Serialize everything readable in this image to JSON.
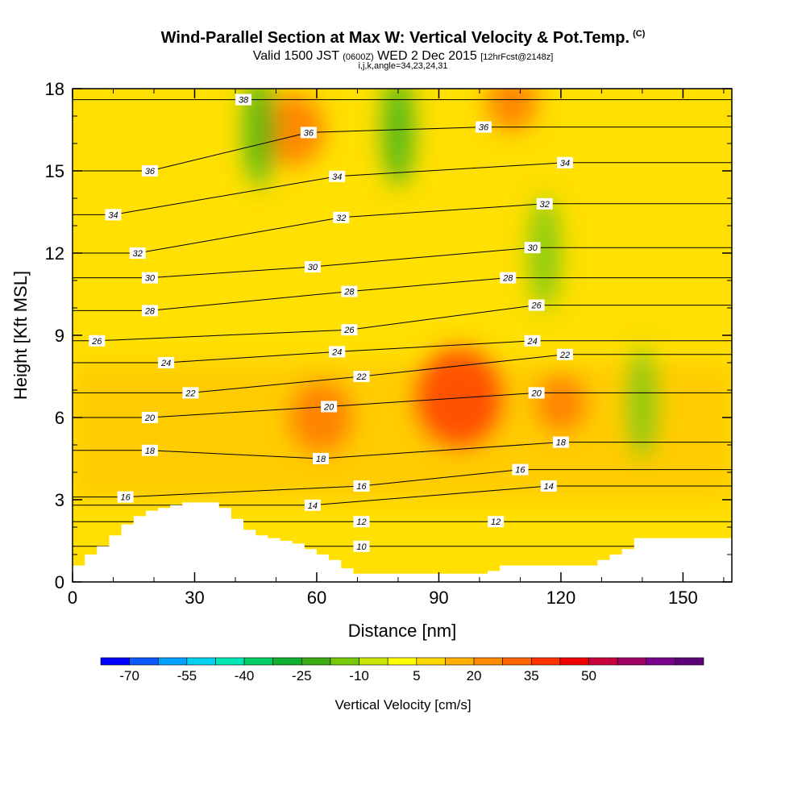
{
  "header": {
    "title": "Wind-Parallel Section at Max W: Vertical Velocity & Pot.Temp.",
    "title_units": "(C)",
    "valid_prefix": "Valid 1500 JST",
    "valid_utc": "(0600Z)",
    "valid_date": "WED 2 Dec 2015",
    "forecast": "[12hrFcst@2148z]",
    "indices": "i,j,k,angle=34,23,24,31"
  },
  "chart_data": {
    "type": "heatmap",
    "xlabel": "Distance [nm]",
    "ylabel": "Height [Kft MSL]",
    "xlim": [
      0,
      162
    ],
    "ylim": [
      0,
      18
    ],
    "x_ticks": [
      0,
      30,
      60,
      90,
      120,
      150
    ],
    "y_ticks": [
      0,
      3,
      6,
      9,
      12,
      15,
      18
    ],
    "colorbar": {
      "label": "Vertical Velocity [cm/s]",
      "tick_labels": [
        "-70",
        "-55",
        "-40",
        "-25",
        "-10",
        "5",
        "20",
        "35",
        "50"
      ],
      "colors": [
        "#0000ff",
        "#0a5aff",
        "#00a0ff",
        "#00d2f0",
        "#00e6b4",
        "#00cd64",
        "#10b030",
        "#3caa14",
        "#78c80a",
        "#c8e600",
        "#ffff00",
        "#ffd700",
        "#ffb000",
        "#ff8c00",
        "#ff6400",
        "#ff3200",
        "#f00000",
        "#c8003c",
        "#a00064",
        "#78008c",
        "#5a0078"
      ]
    },
    "updrafts": [
      {
        "x": 95,
        "y": 6.7,
        "w": 35
      },
      {
        "x": 61,
        "y": 6.0,
        "w": 25
      },
      {
        "x": 120,
        "y": 6.5,
        "w": 20
      },
      {
        "x": 54,
        "y": 16.5,
        "w": 25
      },
      {
        "x": 108,
        "y": 17.5,
        "w": 20
      }
    ],
    "downdrafts": [
      {
        "x": 46,
        "y": 16.5,
        "w": -20
      },
      {
        "x": 80,
        "y": 16.5,
        "w": -18
      },
      {
        "x": 116,
        "y": 12,
        "w": -15
      },
      {
        "x": 140,
        "y": 6.5,
        "w": -12
      }
    ],
    "terrain": {
      "x": [
        0,
        3,
        6,
        9,
        12,
        15,
        18,
        21,
        24,
        27,
        30,
        33,
        36,
        39,
        42,
        45,
        48,
        51,
        54,
        57,
        60,
        63,
        66,
        69,
        72,
        75,
        78,
        81,
        84,
        87,
        90,
        93,
        96,
        99,
        102,
        105,
        108,
        111,
        114,
        117,
        120,
        123,
        126,
        129,
        132,
        135,
        138,
        141,
        144,
        147,
        150,
        153,
        156,
        159,
        162
      ],
      "y": [
        0.6,
        1.0,
        1.3,
        1.7,
        2.1,
        2.4,
        2.6,
        2.7,
        2.8,
        2.9,
        2.9,
        2.9,
        2.7,
        2.3,
        1.9,
        1.7,
        1.6,
        1.5,
        1.4,
        1.2,
        1.0,
        0.8,
        0.5,
        0.3,
        0.3,
        0.3,
        0.3,
        0.3,
        0.3,
        0.3,
        0.3,
        0.3,
        0.3,
        0.3,
        0.4,
        0.6,
        0.6,
        0.6,
        0.6,
        0.6,
        0.6,
        0.6,
        0.6,
        0.8,
        1.0,
        1.2,
        1.6,
        1.6,
        1.6,
        1.6,
        1.6,
        1.6,
        1.6,
        1.6,
        1.6
      ]
    },
    "theta_contours": {
      "levels": [
        10,
        12,
        14,
        16,
        18,
        20,
        22,
        24,
        26,
        28,
        30,
        32,
        34,
        36,
        38
      ],
      "labels": [
        {
          "text": "10",
          "x": 71,
          "y": 1.3
        },
        {
          "text": "12",
          "x": 71,
          "y": 2.2
        },
        {
          "text": "12",
          "x": 104,
          "y": 2.2
        },
        {
          "text": "14",
          "x": 59,
          "y": 2.8
        },
        {
          "text": "14",
          "x": 117,
          "y": 3.5
        },
        {
          "text": "16",
          "x": 13,
          "y": 3.1
        },
        {
          "text": "16",
          "x": 71,
          "y": 3.5
        },
        {
          "text": "16",
          "x": 110,
          "y": 4.1
        },
        {
          "text": "18",
          "x": 19,
          "y": 4.8
        },
        {
          "text": "18",
          "x": 61,
          "y": 4.5
        },
        {
          "text": "18",
          "x": 120,
          "y": 5.1
        },
        {
          "text": "20",
          "x": 19,
          "y": 6.0
        },
        {
          "text": "20",
          "x": 63,
          "y": 6.4
        },
        {
          "text": "20",
          "x": 114,
          "y": 6.9
        },
        {
          "text": "22",
          "x": 29,
          "y": 6.9
        },
        {
          "text": "22",
          "x": 71,
          "y": 7.5
        },
        {
          "text": "22",
          "x": 121,
          "y": 8.3
        },
        {
          "text": "24",
          "x": 23,
          "y": 8.0
        },
        {
          "text": "24",
          "x": 65,
          "y": 8.4
        },
        {
          "text": "24",
          "x": 113,
          "y": 8.8
        },
        {
          "text": "26",
          "x": 6,
          "y": 8.8
        },
        {
          "text": "26",
          "x": 68,
          "y": 9.2
        },
        {
          "text": "26",
          "x": 114,
          "y": 10.1
        },
        {
          "text": "28",
          "x": 19,
          "y": 9.9
        },
        {
          "text": "28",
          "x": 68,
          "y": 10.6
        },
        {
          "text": "28",
          "x": 107,
          "y": 11.1
        },
        {
          "text": "30",
          "x": 19,
          "y": 11.1
        },
        {
          "text": "30",
          "x": 59,
          "y": 11.5
        },
        {
          "text": "30",
          "x": 113,
          "y": 12.2
        },
        {
          "text": "32",
          "x": 16,
          "y": 12.0
        },
        {
          "text": "32",
          "x": 66,
          "y": 13.3
        },
        {
          "text": "32",
          "x": 116,
          "y": 13.8
        },
        {
          "text": "34",
          "x": 10,
          "y": 13.4
        },
        {
          "text": "34",
          "x": 65,
          "y": 14.8
        },
        {
          "text": "34",
          "x": 121,
          "y": 15.3
        },
        {
          "text": "36",
          "x": 19,
          "y": 15.0
        },
        {
          "text": "36",
          "x": 58,
          "y": 16.4
        },
        {
          "text": "36",
          "x": 101,
          "y": 16.6
        },
        {
          "text": "38",
          "x": 42,
          "y": 17.6
        }
      ]
    }
  }
}
